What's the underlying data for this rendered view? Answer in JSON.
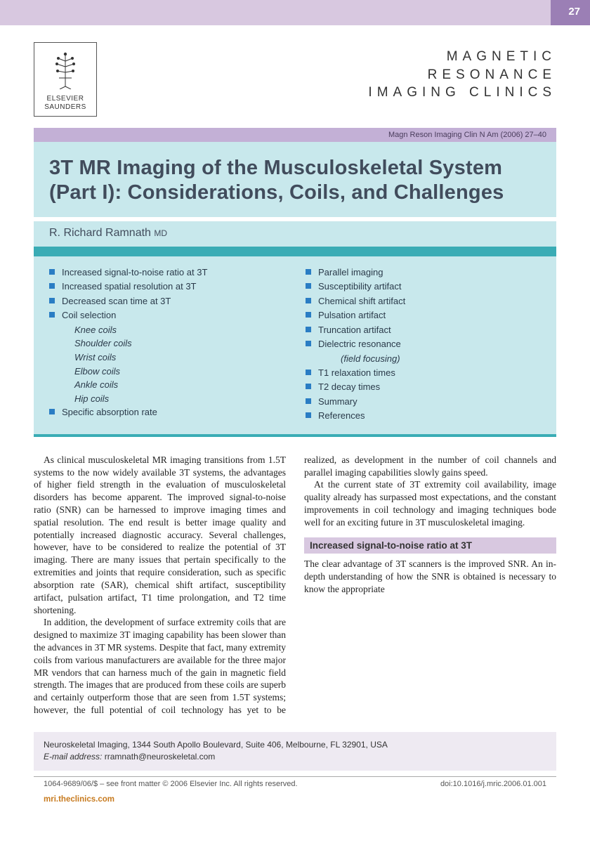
{
  "page_number": "27",
  "publisher": {
    "line1": "ELSEVIER",
    "line2": "SAUNDERS"
  },
  "journal": {
    "line1": "MAGNETIC",
    "line2": "RESONANCE",
    "line3": "IMAGING CLINICS"
  },
  "citation": "Magn Reson Imaging Clin N Am (2006) 27–40",
  "title": "3T MR Imaging of the Musculoskeletal System (Part I): Considerations, Coils, and Challenges",
  "author_name": "R. Richard Ramnath",
  "author_degree": "MD",
  "toc_left": [
    {
      "label": "Increased signal-to-noise ratio at 3T"
    },
    {
      "label": "Increased spatial resolution at 3T"
    },
    {
      "label": "Decreased scan time at 3T"
    },
    {
      "label": "Coil selection",
      "subs": [
        "Knee coils",
        "Shoulder coils",
        "Wrist coils",
        "Elbow coils",
        "Ankle coils",
        "Hip coils"
      ]
    },
    {
      "label": "Specific absorption rate"
    }
  ],
  "toc_right": [
    {
      "label": "Parallel imaging"
    },
    {
      "label": "Susceptibility artifact"
    },
    {
      "label": "Chemical shift artifact"
    },
    {
      "label": "Pulsation artifact"
    },
    {
      "label": "Truncation artifact"
    },
    {
      "label": "Dielectric resonance",
      "subs_indent": [
        "(field focusing)"
      ]
    },
    {
      "label": "T1 relaxation times"
    },
    {
      "label": "T2 decay times"
    },
    {
      "label": "Summary"
    },
    {
      "label": "References"
    }
  ],
  "para1": "As clinical musculoskeletal MR imaging transitions from 1.5T systems to the now widely available 3T systems, the advantages of higher field strength in the evaluation of musculoskeletal disorders has become apparent. The improved signal-to-noise ratio (SNR) can be harnessed to improve imaging times and spatial resolution. The end result is better image quality and potentially increased diagnostic accuracy. Several challenges, however, have to be considered to realize the potential of 3T imaging. There are many issues that pertain specifically to the extremities and joints that require consideration, such as specific absorption rate (SAR), chemical shift artifact, susceptibility artifact, pulsation artifact, T1 time prolongation, and T2 time shortening.",
  "para2": "In addition, the development of surface extremity coils that are designed to maximize 3T imaging capability has been slower than the advances in 3T MR systems. Despite that fact, many extremity coils from various manufacturers are available for the three major MR vendors that can harness much of the gain in magnetic field strength. The images that are produced from these coils are superb and certainly outperform those that are seen from 1.5T systems; however, the full potential of coil technology has yet to be realized, as development in the number of coil channels and parallel imaging capabilities slowly gains speed.",
  "para3": "At the current state of 3T extremity coil availability, image quality already has surpassed most expectations, and the constant improvements in coil technology and imaging techniques bode well for an exciting future in 3T musculoskeletal imaging.",
  "section_heading": "Increased signal-to-noise ratio at 3T",
  "para4": "The clear advantage of 3T scanners is the improved SNR. An in-depth understanding of how the SNR is obtained is necessary to know the appropriate",
  "affiliation": "Neuroskeletal Imaging, 1344 South Apollo Boulevard, Suite 406, Melbourne, FL 32901, USA",
  "email_label": "E-mail address:",
  "email": "rramnath@neuroskeletal.com",
  "footer_left": "1064-9689/06/$ – see front matter © 2006 Elsevier Inc. All rights reserved.",
  "footer_right": "doi:10.1016/j.mric.2006.01.001",
  "site": "mri.theclinics.com",
  "colors": {
    "lavender": "#d8c8e0",
    "purple": "#9b7fb5",
    "mint": "#c8e8ec",
    "teal": "#3aacb5",
    "bullet": "#2a7dc4",
    "orange": "#c77a1e"
  }
}
